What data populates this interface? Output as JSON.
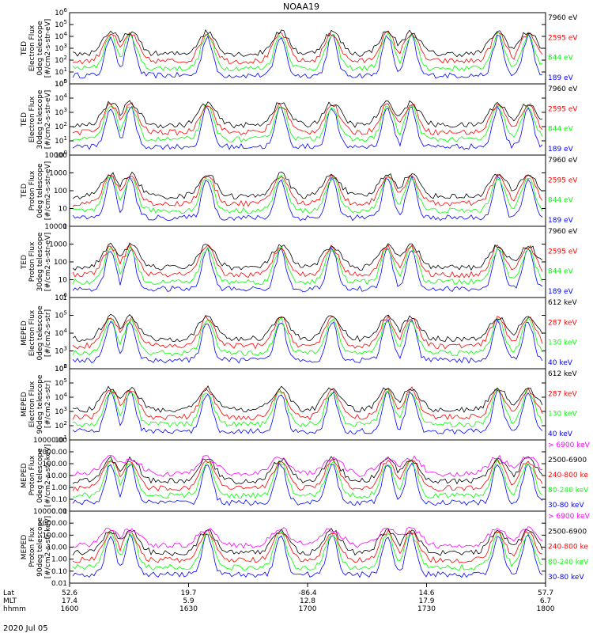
{
  "title": "NOAA19",
  "date_label": "2020 Jul 05",
  "colors": {
    "black": "#000000",
    "red": "#ff0000",
    "green": "#00ff00",
    "blue": "#0000ff",
    "magenta": "#ff00ff"
  },
  "chart_data": [
    {
      "type": "line",
      "ylabel": "TED\nElectron Flux\n0deg telescope\n[#/cm2-s-str-eV]",
      "yscale": "log",
      "ylim": [
        1,
        1000000
      ],
      "yticks": [
        "10^0",
        "10^1",
        "10^2",
        "10^3",
        "10^4",
        "10^5",
        "10^6"
      ],
      "legend": [
        {
          "label": "7960 eV",
          "color": "#000000"
        },
        {
          "label": "2595 eV",
          "color": "#ff0000"
        },
        {
          "label": "844 eV",
          "color": "#00ff00"
        },
        {
          "label": "189 eV",
          "color": "#0000ff"
        }
      ]
    },
    {
      "type": "line",
      "ylabel": "TED\nElectron Flux\n30deg telescope\n[#/cm2-s-str-eV]",
      "yscale": "log",
      "ylim": [
        1,
        100000
      ],
      "yticks": [
        "10^0",
        "10^1",
        "10^2",
        "10^3",
        "10^4",
        "10^5"
      ],
      "legend": [
        {
          "label": "7960 eV",
          "color": "#000000"
        },
        {
          "label": "2595 eV",
          "color": "#ff0000"
        },
        {
          "label": "844 eV",
          "color": "#00ff00"
        },
        {
          "label": "189 eV",
          "color": "#0000ff"
        }
      ]
    },
    {
      "type": "line",
      "ylabel": "TED\nProton Flux\n0deg telescope\n[#/cm2-s-str-eV]",
      "yscale": "log",
      "ylim": [
        1,
        10000
      ],
      "yticks": [
        "1",
        "10",
        "100",
        "1000",
        "10000"
      ],
      "legend": [
        {
          "label": "7960 eV",
          "color": "#000000"
        },
        {
          "label": "2595 eV",
          "color": "#ff0000"
        },
        {
          "label": "844 eV",
          "color": "#00ff00"
        },
        {
          "label": "189 eV",
          "color": "#0000ff"
        }
      ]
    },
    {
      "type": "line",
      "ylabel": "TED\nProton Flux\n30deg telescope\n[#/cm2-s-str-eV]",
      "yscale": "log",
      "ylim": [
        1,
        10000
      ],
      "yticks": [
        "1",
        "10",
        "100",
        "1000",
        "10000"
      ],
      "legend": [
        {
          "label": "7960 eV",
          "color": "#000000"
        },
        {
          "label": "2595 eV",
          "color": "#ff0000"
        },
        {
          "label": "844 eV",
          "color": "#00ff00"
        },
        {
          "label": "189 eV",
          "color": "#0000ff"
        }
      ]
    },
    {
      "type": "line",
      "ylabel": "MEPED\nElectron Flux\n0deg telescope\n[#/cm2-s-str]",
      "yscale": "log",
      "ylim": [
        100,
        1000000
      ],
      "yticks": [
        "10^2",
        "10^3",
        "10^4",
        "10^5",
        "10^6"
      ],
      "legend": [
        {
          "label": "612 keV",
          "color": "#000000"
        },
        {
          "label": "287 keV",
          "color": "#ff0000"
        },
        {
          "label": "130 keV",
          "color": "#00ff00"
        },
        {
          "label": "40 keV",
          "color": "#0000ff"
        }
      ]
    },
    {
      "type": "line",
      "ylabel": "MEPED\nElectron Flux\n90deg telescope\n[#/cm2-s-str]",
      "yscale": "log",
      "ylim": [
        10,
        1000000
      ],
      "yticks": [
        "10^1",
        "10^2",
        "10^3",
        "10^4",
        "10^5",
        "10^6"
      ],
      "legend": [
        {
          "label": "612 keV",
          "color": "#000000"
        },
        {
          "label": "287 keV",
          "color": "#ff0000"
        },
        {
          "label": "130 keV",
          "color": "#00ff00"
        },
        {
          "label": "40 keV",
          "color": "#0000ff"
        }
      ]
    },
    {
      "type": "line",
      "ylabel": "MEPED\nProton Flux\n0deg telescope\n[#/cm2-s-str-keV]",
      "yscale": "log",
      "ylim": [
        0.01,
        10000
      ],
      "yticks": [
        "0.01",
        "0.10",
        "1.00",
        "10.00",
        "100.00",
        "1000.00",
        "10000.00"
      ],
      "legend": [
        {
          "label": "> 6900 keV",
          "color": "#ff00ff"
        },
        {
          "label": "2500-6900",
          "color": "#000000"
        },
        {
          "label": "240-800 ke",
          "color": "#ff0000"
        },
        {
          "label": "80-240 keV",
          "color": "#00ff00"
        },
        {
          "label": "30-80 keV",
          "color": "#0000ff"
        }
      ]
    },
    {
      "type": "line",
      "ylabel": "MEPED\nProton Flux\n90deg telescope\n[#/cm2-s-str-keV]",
      "yscale": "log",
      "ylim": [
        0.01,
        10000
      ],
      "yticks": [
        "0.01",
        "0.10",
        "1.00",
        "10.00",
        "100.00",
        "1000.00",
        "10000.00"
      ],
      "legend": [
        {
          "label": "> 6900 keV",
          "color": "#ff00ff"
        },
        {
          "label": "2500-6900",
          "color": "#000000"
        },
        {
          "label": "240-800 ke",
          "color": "#ff0000"
        },
        {
          "label": "80-240 keV",
          "color": "#00ff00"
        },
        {
          "label": "30-80 keV",
          "color": "#0000ff"
        }
      ]
    }
  ],
  "x_axis": {
    "row_labels": [
      "Lat",
      "MLT",
      "hhmm"
    ],
    "ticks": [
      {
        "lat": "52.6",
        "mlt": "17.4",
        "hhmm": "1600"
      },
      {
        "lat": "19.7",
        "mlt": "5.9",
        "hhmm": "1630"
      },
      {
        "lat": "-86.4",
        "mlt": "12.8",
        "hhmm": "1700"
      },
      {
        "lat": "14.6",
        "mlt": "17.9",
        "hhmm": "1730"
      },
      {
        "lat": "57.7",
        "mlt": "6.7",
        "hhmm": "1800"
      }
    ]
  }
}
